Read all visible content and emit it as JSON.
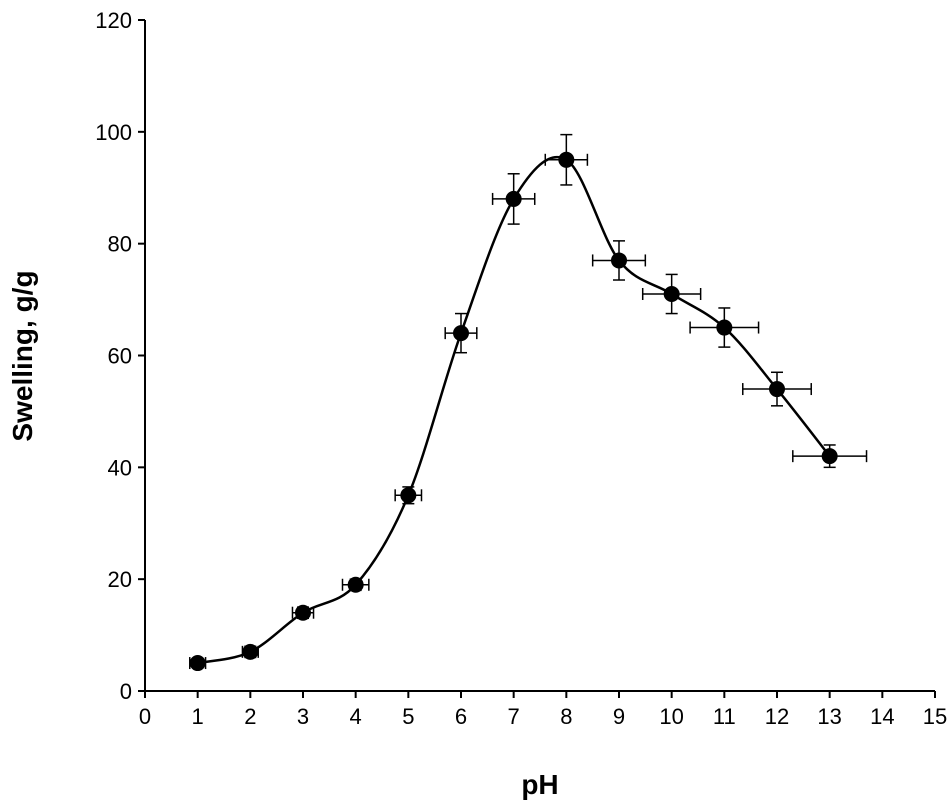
{
  "chart_data": {
    "type": "scatter",
    "title": "",
    "xlabel": "pH",
    "ylabel": "Swelling, g/g",
    "xlim": [
      0,
      15
    ],
    "ylim": [
      0,
      120
    ],
    "xticks": [
      0,
      1,
      2,
      3,
      4,
      5,
      6,
      7,
      8,
      9,
      10,
      11,
      12,
      13,
      14,
      15
    ],
    "yticks": [
      0,
      20,
      40,
      60,
      80,
      100,
      120
    ],
    "grid": false,
    "legend": "none",
    "smooth_line": true,
    "colors": {
      "marker": "#000000",
      "line": "#000000"
    },
    "series": [
      {
        "x": [
          1,
          2,
          3,
          4,
          5,
          6,
          7,
          8,
          9,
          10,
          11,
          12,
          13
        ],
        "y": [
          5,
          7,
          14,
          19,
          35,
          64,
          88,
          95,
          77,
          71,
          65,
          54,
          42
        ],
        "x_err": [
          0.15,
          0.15,
          0.2,
          0.25,
          0.25,
          0.3,
          0.4,
          0.4,
          0.5,
          0.55,
          0.65,
          0.65,
          0.7
        ],
        "y_err": [
          0.5,
          1,
          1,
          1,
          1.5,
          3.5,
          4.5,
          4.5,
          3.5,
          3.5,
          3.5,
          3,
          2
        ]
      }
    ]
  }
}
